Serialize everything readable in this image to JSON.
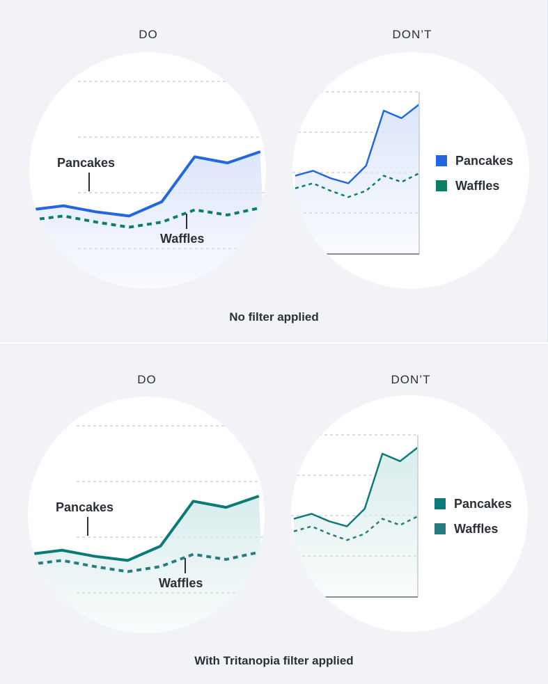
{
  "panels": [
    {
      "id": "no-filter",
      "caption": "No filter applied",
      "do_heading": "DO",
      "dont_heading": "DON’T",
      "colors": {
        "pancakes": "#2266e0",
        "waffles": "#0b7f66",
        "fill": "#dce6fa"
      },
      "pancakes_label": "Pancakes",
      "waffles_label": "Waffles",
      "legend": [
        {
          "label": "Pancakes",
          "color": "#2266e0"
        },
        {
          "label": "Waffles",
          "color": "#0b7f66"
        }
      ]
    },
    {
      "id": "tritanopia",
      "caption": "With Tritanopia filter applied",
      "do_heading": "DO",
      "dont_heading": "DON’T",
      "colors": {
        "pancakes": "#0c7a78",
        "waffles": "#2a7a82",
        "fill": "#d9ecec"
      },
      "pancakes_label": "Pancakes",
      "waffles_label": "Waffles",
      "legend": [
        {
          "label": "Pancakes",
          "color": "#0c7a78"
        },
        {
          "label": "Waffles",
          "color": "#2a7a82"
        }
      ]
    }
  ],
  "chart_data": [
    {
      "type": "line",
      "title": "",
      "x": [
        0,
        1,
        2,
        3,
        4,
        5,
        6,
        7
      ],
      "series": [
        {
          "name": "Pancakes",
          "values": [
            18,
            22,
            16,
            12,
            26,
            70,
            64,
            75
          ],
          "style": "solid"
        },
        {
          "name": "Waffles",
          "values": [
            8,
            12,
            6,
            1,
            6,
            18,
            13,
            20
          ],
          "style": "dotted"
        }
      ],
      "legend_placement": "right (DON’T chart) / inline labels (DO chart)",
      "grid": true
    },
    {
      "type": "line",
      "title": "",
      "x": [
        0,
        1,
        2,
        3,
        4,
        5,
        6,
        7
      ],
      "series": [
        {
          "name": "Pancakes",
          "values": [
            18,
            22,
            16,
            12,
            26,
            70,
            64,
            75
          ],
          "style": "solid"
        },
        {
          "name": "Waffles",
          "values": [
            8,
            12,
            6,
            1,
            6,
            18,
            13,
            20
          ],
          "style": "dotted"
        }
      ],
      "legend_placement": "right (DON’T chart) / inline labels (DO chart)",
      "grid": true
    }
  ]
}
